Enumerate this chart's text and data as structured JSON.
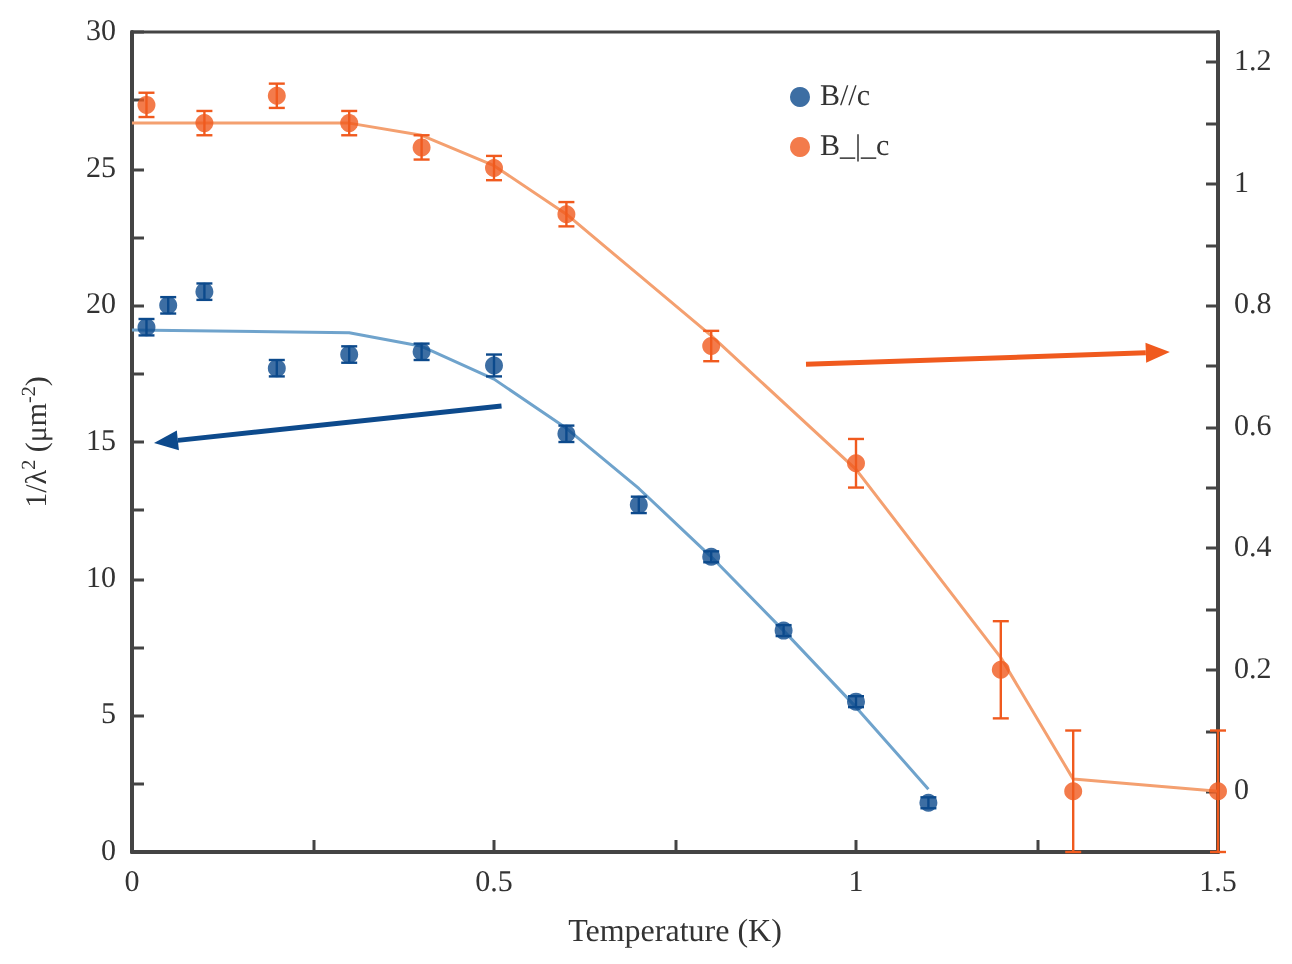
{
  "chart_data": {
    "type": "scatter",
    "xlabel": "Temperature (K)",
    "ylabel": "1/λ$^{2}$ (μm$^{-2}$)",
    "xlim": [
      0,
      1.5
    ],
    "xticks": [
      0,
      0.5,
      1,
      1.5
    ],
    "ylim": [
      0,
      30
    ],
    "yticks": [
      0,
      5,
      10,
      15,
      20,
      25,
      30
    ],
    "y2lim": [
      -0.1,
      1.25
    ],
    "y2ticks": [
      0,
      0.2,
      0.4,
      0.6,
      0.8,
      1,
      1.2
    ],
    "grid": false,
    "legend": "top right",
    "marker": "circle",
    "series": [
      {
        "name": "B//c",
        "color": "#0d4a8c",
        "x": [
          0.02,
          0.05,
          0.1,
          0.2,
          0.3,
          0.4,
          0.5,
          0.6,
          0.7,
          0.8,
          0.9,
          1.0,
          1.1
        ],
        "values": [
          19.2,
          20.0,
          20.5,
          17.7,
          18.2,
          18.3,
          17.8,
          15.3,
          12.7,
          10.8,
          8.1,
          5.5,
          1.8
        ],
        "errors": [
          0.3,
          0.3,
          0.3,
          0.3,
          0.3,
          0.3,
          0.4,
          0.3,
          0.3,
          0.2,
          0.2,
          0.2,
          0.2
        ]
      },
      {
        "type": "line",
        "color": "#6fa3cc",
        "marker": "none",
        "x": [
          0,
          0.3,
          0.4,
          0.5,
          0.6,
          0.7,
          0.8,
          0.9,
          1.0,
          1.1
        ],
        "values": [
          19.1,
          19.0,
          18.5,
          17.3,
          15.5,
          13.3,
          10.8,
          8.1,
          5.3,
          2.3
        ]
      },
      {
        "name": "B_|_c",
        "axis": "y2",
        "color": "#f05a1e",
        "x": [
          0.02,
          0.1,
          0.2,
          0.3,
          0.4,
          0.5,
          0.6,
          0.8,
          1.0,
          1.2,
          1.3,
          1.5
        ],
        "values": [
          1.13,
          1.1,
          1.145,
          1.1,
          1.06,
          1.026,
          0.95,
          0.733,
          0.54,
          0.2,
          0.0,
          0.0
        ],
        "errors": [
          0.02,
          0.02,
          0.02,
          0.02,
          0.02,
          0.02,
          0.02,
          0.025,
          0.04,
          0.08,
          0.1,
          0.1
        ]
      },
      {
        "type": "line",
        "axis": "y2",
        "color": "#f4a070",
        "marker": "none",
        "x": [
          0,
          0.3,
          0.4,
          0.5,
          0.6,
          0.7,
          0.8,
          1.0,
          1.2,
          1.3,
          1.5
        ],
        "values": [
          1.1,
          1.1,
          1.08,
          1.03,
          0.95,
          0.85,
          0.75,
          0.53,
          0.22,
          0.02,
          0.0
        ]
      }
    ]
  }
}
